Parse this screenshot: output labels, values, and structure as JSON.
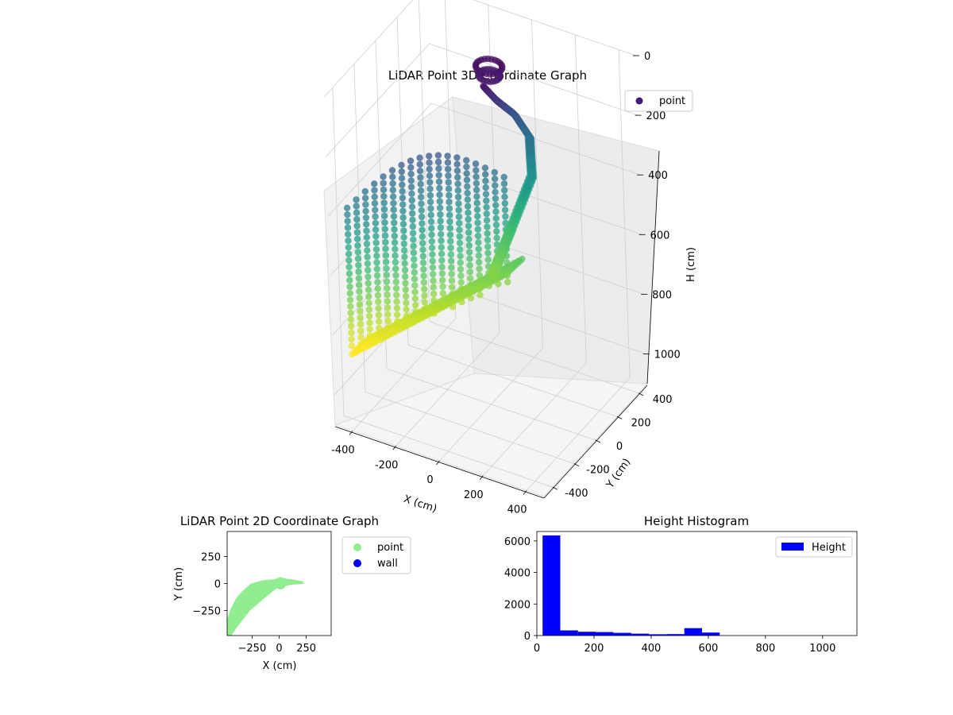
{
  "chart_data": [
    {
      "type": "scatter3d",
      "title": "LiDAR Point 3D Coordinate Graph",
      "xlabel": "X (cm)",
      "ylabel": "Y (cm)",
      "zlabel": "H (cm)",
      "xticks": [
        -400,
        -200,
        0,
        200,
        400
      ],
      "yticks": [
        -400,
        -200,
        0,
        200,
        400
      ],
      "zticks": [
        0,
        200,
        400,
        600,
        800,
        1000
      ],
      "xlim": [
        -480,
        480
      ],
      "ylim": [
        -480,
        480
      ],
      "zlim": [
        0,
        1100
      ],
      "z_inverted": true,
      "colormap": "viridis",
      "legend": {
        "position": "top-right",
        "entries": [
          {
            "label": "point",
            "color": "#46197f"
          }
        ]
      },
      "grid": true,
      "structures": {
        "wall_fan": {
          "x_range": [
            -390,
            80
          ],
          "y_range": [
            -480,
            30
          ],
          "h_range": [
            330,
            830
          ],
          "columns": 18
        },
        "arm": {
          "path": [
            [
              5,
              30,
              50
            ],
            [
              15,
              110,
              120
            ],
            [
              35,
              230,
              210
            ],
            [
              70,
              290,
              300
            ],
            [
              85,
              270,
              420
            ],
            [
              40,
              160,
              560
            ],
            [
              20,
              70,
              640
            ],
            [
              10,
              30,
              680
            ]
          ]
        },
        "floor_blob": {
          "x_range": [
            -390,
            80
          ],
          "y_range": [
            -480,
            30
          ],
          "h_range": [
            600,
            830
          ]
        }
      }
    },
    {
      "type": "scatter",
      "title": "LiDAR Point 2D Coordinate Graph",
      "xlabel": "X (cm)",
      "ylabel": "Y (cm)",
      "xticks": [
        -250,
        0,
        250
      ],
      "yticks": [
        -250,
        0,
        250
      ],
      "xlim": [
        -480,
        480
      ],
      "ylim": [
        -480,
        480
      ],
      "legend": {
        "position": "outside-right",
        "entries": [
          {
            "label": "point",
            "color": "#90ee90"
          },
          {
            "label": "wall",
            "color": "#0000ff"
          }
        ]
      },
      "series": [
        {
          "name": "point",
          "color": "#90ee90",
          "shape": [
            [
              -480,
              -480
            ],
            [
              -440,
              -480
            ],
            [
              -400,
              -420
            ],
            [
              -340,
              -340
            ],
            [
              -270,
              -250
            ],
            [
              -200,
              -190
            ],
            [
              -130,
              -130
            ],
            [
              -80,
              -90
            ],
            [
              -30,
              -50
            ],
            [
              0,
              -30
            ],
            [
              50,
              -25
            ],
            [
              120,
              -10
            ],
            [
              200,
              -5
            ],
            [
              230,
              0
            ],
            [
              220,
              20
            ],
            [
              140,
              35
            ],
            [
              60,
              45
            ],
            [
              10,
              60
            ],
            [
              -40,
              40
            ],
            [
              -150,
              30
            ],
            [
              -260,
              0
            ],
            [
              -340,
              -70
            ],
            [
              -400,
              -140
            ],
            [
              -450,
              -240
            ],
            [
              -480,
              -330
            ]
          ],
          "lobe": {
            "x": 10,
            "y": 0,
            "r": 55
          }
        },
        {
          "name": "wall",
          "color": "#0000ff",
          "points": []
        }
      ]
    },
    {
      "type": "histogram",
      "title": "Height Histogram",
      "legend": {
        "position": "top-right",
        "entries": [
          {
            "label": "Height",
            "color": "#0000ff"
          }
        ]
      },
      "xticks": [
        0,
        200,
        400,
        600,
        800,
        1000
      ],
      "yticks": [
        0,
        2000,
        4000,
        6000
      ],
      "xlim": [
        0,
        1120
      ],
      "ylim": [
        0,
        6600
      ],
      "bins": [
        20,
        82,
        144,
        206,
        268,
        330,
        392,
        454,
        516,
        578,
        640,
        702,
        764,
        826,
        888,
        950,
        1012,
        1074
      ],
      "counts": [
        6350,
        330,
        240,
        220,
        170,
        120,
        80,
        90,
        470,
        190,
        0,
        0,
        0,
        0,
        0,
        0,
        0
      ],
      "color": "#0000ff"
    }
  ]
}
